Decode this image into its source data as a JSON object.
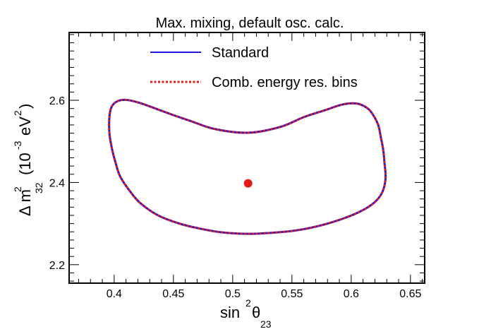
{
  "chart_data": {
    "type": "line",
    "title": "Max. mixing, default osc. calc.",
    "xlabel": {
      "base": "sin",
      "sup": "2",
      "symbol": "θ",
      "sub": "23"
    },
    "ylabel": {
      "prefix": "Δ m",
      "sup": "2",
      "sub": "32",
      "unit_open": "(10",
      "unit_exp": "-3",
      "unit_mid": "eV",
      "unit_sup": "2",
      "unit_close": ")"
    },
    "xlim": [
      0.362,
      0.662
    ],
    "ylim": [
      2.155,
      2.765
    ],
    "xticks": [
      "0.4",
      "0.45",
      "0.5",
      "0.55",
      "0.6",
      "0.65"
    ],
    "yticks": [
      "2.2",
      "2.4",
      "2.6"
    ],
    "xtick_values": [
      0.4,
      0.45,
      0.5,
      0.55,
      0.6,
      0.65
    ],
    "ytick_values": [
      2.2,
      2.4,
      2.6
    ],
    "legend": {
      "placement": "top-center"
    },
    "series": [
      {
        "name": "Standard",
        "color": "#1a1adc",
        "style": "solid",
        "x": [
          0.513,
          0.535,
          0.555,
          0.575,
          0.593,
          0.608,
          0.619,
          0.626,
          0.629,
          0.628,
          0.627,
          0.625,
          0.623,
          0.619,
          0.614,
          0.605,
          0.593,
          0.578,
          0.56,
          0.54,
          0.513,
          0.485,
          0.465,
          0.447,
          0.432,
          0.42,
          0.41,
          0.403,
          0.398,
          0.396,
          0.396,
          0.398,
          0.401,
          0.405,
          0.413,
          0.422,
          0.437,
          0.455,
          0.472,
          0.49,
          0.513
        ],
        "y": [
          2.275,
          2.278,
          2.284,
          2.296,
          2.312,
          2.33,
          2.35,
          2.375,
          2.41,
          2.45,
          2.48,
          2.51,
          2.538,
          2.562,
          2.58,
          2.592,
          2.59,
          2.576,
          2.559,
          2.535,
          2.521,
          2.53,
          2.549,
          2.567,
          2.583,
          2.595,
          2.601,
          2.598,
          2.585,
          2.56,
          2.52,
          2.484,
          2.45,
          2.415,
          2.38,
          2.35,
          2.32,
          2.3,
          2.288,
          2.279,
          2.275
        ]
      },
      {
        "name": "Comb. energy res. bins",
        "color": "#e41a1a",
        "style": "dotted",
        "x": [
          0.513,
          0.535,
          0.555,
          0.575,
          0.593,
          0.608,
          0.619,
          0.626,
          0.629,
          0.628,
          0.627,
          0.625,
          0.623,
          0.619,
          0.614,
          0.605,
          0.593,
          0.578,
          0.56,
          0.54,
          0.513,
          0.485,
          0.465,
          0.447,
          0.432,
          0.42,
          0.41,
          0.403,
          0.398,
          0.396,
          0.396,
          0.398,
          0.401,
          0.405,
          0.413,
          0.422,
          0.437,
          0.455,
          0.472,
          0.49,
          0.513
        ],
        "y": [
          2.275,
          2.278,
          2.284,
          2.296,
          2.312,
          2.33,
          2.35,
          2.375,
          2.41,
          2.45,
          2.48,
          2.51,
          2.538,
          2.562,
          2.58,
          2.592,
          2.59,
          2.576,
          2.559,
          2.535,
          2.521,
          2.53,
          2.549,
          2.567,
          2.583,
          2.595,
          2.601,
          2.598,
          2.585,
          2.56,
          2.52,
          2.484,
          2.45,
          2.415,
          2.38,
          2.35,
          2.32,
          2.3,
          2.288,
          2.279,
          2.275
        ]
      }
    ],
    "points": [
      {
        "x": 0.513,
        "y": 2.398,
        "color": "#e41a1a"
      }
    ]
  }
}
